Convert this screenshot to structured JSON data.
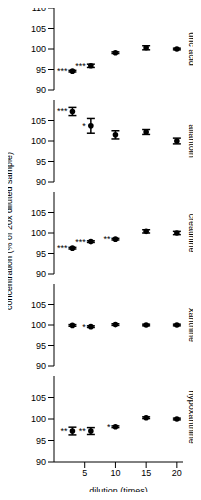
{
  "chart_data": [
    {
      "type": "scatter",
      "title": "uric acid",
      "x": [
        3,
        6,
        10,
        15,
        20
      ],
      "values": [
        94.6,
        95.9,
        99.1,
        100.3,
        100.0
      ],
      "errors": [
        0.2,
        0.4,
        0.2,
        0.5,
        0.2
      ],
      "annotations": [
        "***",
        "***",
        null,
        null,
        null
      ],
      "xlim": [
        0,
        21
      ],
      "ylim": [
        90,
        110
      ],
      "yticks": [
        90,
        95,
        100,
        105,
        110
      ],
      "color": "#000000",
      "marker": "circle"
    },
    {
      "type": "scatter",
      "title": "allantoin",
      "x": [
        3,
        6,
        10,
        15,
        20
      ],
      "values": [
        107.2,
        103.7,
        101.5,
        102.2,
        100.0
      ],
      "errors": [
        1.0,
        1.8,
        1.0,
        0.6,
        0.7
      ],
      "annotations": [
        "***",
        "*",
        null,
        null,
        null
      ],
      "xlim": [
        0,
        21
      ],
      "ylim": [
        90,
        110
      ],
      "yticks": [
        90,
        95,
        100,
        105
      ],
      "color": "#000000",
      "marker": "circle"
    },
    {
      "type": "scatter",
      "title": "creatinine",
      "ylabel": "concentration (% of 20x diluted sample)",
      "x": [
        3,
        6,
        10,
        15,
        20
      ],
      "values": [
        96.3,
        97.9,
        98.5,
        100.4,
        100.0
      ],
      "errors": [
        0.2,
        0.2,
        0.2,
        0.4,
        0.4
      ],
      "annotations": [
        "***",
        "***",
        "**",
        null,
        null
      ],
      "xlim": [
        0,
        21
      ],
      "ylim": [
        90,
        110
      ],
      "yticks": [
        90,
        95,
        100,
        105
      ],
      "color": "#000000",
      "marker": "circle"
    },
    {
      "type": "scatter",
      "title": "xanthine",
      "x": [
        3,
        6,
        10,
        15,
        20
      ],
      "values": [
        99.9,
        99.6,
        100.1,
        100.0,
        100.0
      ],
      "errors": [
        0.2,
        0.2,
        0.2,
        0.2,
        0.2
      ],
      "annotations": [
        null,
        "*",
        null,
        null,
        null
      ],
      "xlim": [
        0,
        21
      ],
      "ylim": [
        90,
        110
      ],
      "yticks": [
        90,
        95,
        100,
        105
      ],
      "color": "#000000",
      "marker": "circle"
    },
    {
      "type": "scatter",
      "title": "hypoxanthine",
      "xlabel": "dilution (times)",
      "x": [
        3,
        6,
        10,
        15,
        20
      ],
      "values": [
        97.2,
        97.2,
        98.2,
        100.3,
        100.0
      ],
      "errors": [
        0.9,
        0.8,
        0.2,
        0.2,
        0.2
      ],
      "annotations": [
        "**",
        "**",
        "*",
        null,
        null
      ],
      "xlim": [
        0,
        21
      ],
      "xticks": [
        5,
        10,
        15,
        20
      ],
      "ylim": [
        90,
        110
      ],
      "yticks": [
        90,
        95,
        100,
        105
      ],
      "color": "#000000",
      "marker": "circle"
    }
  ]
}
